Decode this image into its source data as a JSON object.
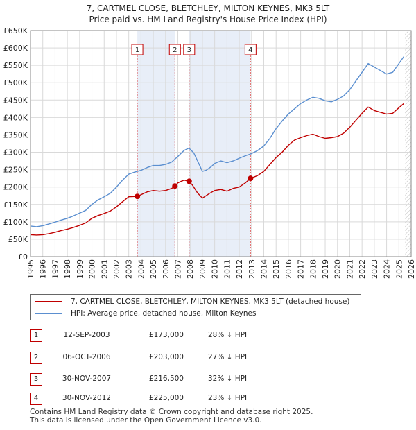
{
  "header": {
    "title": "7, CARTMEL CLOSE, BLETCHLEY, MILTON KEYNES, MK3 5LT",
    "subtitle": "Price paid vs. HM Land Registry's House Price Index (HPI)"
  },
  "chart_data": {
    "type": "line",
    "title": "7, CARTMEL CLOSE, BLETCHLEY, MILTON KEYNES, MK3 5LT",
    "subtitle": "Price paid vs. HM Land Registry's House Price Index (HPI)",
    "xlabel": "",
    "ylabel": "",
    "xlim": [
      1995,
      2026
    ],
    "ylim": [
      0,
      650000
    ],
    "y_ticks": [
      {
        "value": 0,
        "label": "£0"
      },
      {
        "value": 50000,
        "label": "£50K"
      },
      {
        "value": 100000,
        "label": "£100K"
      },
      {
        "value": 150000,
        "label": "£150K"
      },
      {
        "value": 200000,
        "label": "£200K"
      },
      {
        "value": 250000,
        "label": "£250K"
      },
      {
        "value": 300000,
        "label": "£300K"
      },
      {
        "value": 350000,
        "label": "£350K"
      },
      {
        "value": 400000,
        "label": "£400K"
      },
      {
        "value": 450000,
        "label": "£450K"
      },
      {
        "value": 500000,
        "label": "£500K"
      },
      {
        "value": 550000,
        "label": "£550K"
      },
      {
        "value": 600000,
        "label": "£600K"
      },
      {
        "value": 650000,
        "label": "£650K"
      }
    ],
    "x_ticks": [
      "1995",
      "1996",
      "1997",
      "1998",
      "1999",
      "2000",
      "2001",
      "2002",
      "2003",
      "2004",
      "2005",
      "2006",
      "2007",
      "2008",
      "2009",
      "2010",
      "2011",
      "2012",
      "2013",
      "2014",
      "2015",
      "2016",
      "2017",
      "2018",
      "2019",
      "2020",
      "2021",
      "2022",
      "2023",
      "2024",
      "2025",
      "2026"
    ],
    "grid": true,
    "shaded_periods": [
      [
        2003.7,
        2006.76
      ],
      [
        2007.92,
        2012.92
      ]
    ],
    "hatched_after": 2025.5,
    "series": [
      {
        "name": "7, CARTMEL CLOSE, BLETCHLEY, MILTON KEYNES, MK3 5LT (detached house)",
        "color": "#c00000",
        "x": [
          1995,
          1995.5,
          1996,
          1996.5,
          1997,
          1997.5,
          1998,
          1998.5,
          1999,
          1999.5,
          2000,
          2000.5,
          2001,
          2001.5,
          2002,
          2002.5,
          2003,
          2003.7,
          2004,
          2004.5,
          2005,
          2005.5,
          2006,
          2006.5,
          2006.76,
          2007,
          2007.5,
          2007.92,
          2008.2,
          2008.6,
          2009,
          2009.3,
          2009.6,
          2010,
          2010.5,
          2011,
          2011.5,
          2012,
          2012.5,
          2012.92,
          2013.5,
          2014,
          2014.5,
          2015,
          2015.5,
          2016,
          2016.5,
          2017,
          2017.5,
          2018,
          2018.5,
          2019,
          2019.5,
          2020,
          2020.5,
          2021,
          2021.5,
          2022,
          2022.5,
          2023,
          2023.5,
          2024,
          2024.5,
          2025,
          2025.4
        ],
        "y": [
          63000,
          62000,
          63000,
          66000,
          70000,
          75000,
          79000,
          84000,
          90000,
          97000,
          110000,
          118000,
          124000,
          131000,
          143000,
          158000,
          172000,
          173000,
          178000,
          186000,
          190000,
          188000,
          190000,
          196000,
          203000,
          212000,
          220000,
          216500,
          205000,
          183000,
          168000,
          175000,
          182000,
          190000,
          193000,
          188000,
          196000,
          200000,
          212000,
          225000,
          233000,
          245000,
          265000,
          285000,
          300000,
          320000,
          335000,
          342000,
          348000,
          352000,
          345000,
          340000,
          342000,
          345000,
          355000,
          372000,
          392000,
          412000,
          430000,
          420000,
          415000,
          410000,
          412000,
          428000,
          440000
        ]
      },
      {
        "name": "HPI: Average price, detached house, Milton Keynes",
        "color": "#5b8fd0",
        "x": [
          1995,
          1995.5,
          1996,
          1996.5,
          1997,
          1997.5,
          1998,
          1998.5,
          1999,
          1999.5,
          2000,
          2000.5,
          2001,
          2001.5,
          2002,
          2002.5,
          2003,
          2003.5,
          2004,
          2004.5,
          2005,
          2005.5,
          2006,
          2006.5,
          2007,
          2007.5,
          2007.9,
          2008.3,
          2008.7,
          2009,
          2009.3,
          2009.7,
          2010,
          2010.5,
          2011,
          2011.5,
          2012,
          2012.5,
          2013,
          2013.5,
          2014,
          2014.5,
          2015,
          2015.5,
          2016,
          2016.5,
          2017,
          2017.5,
          2018,
          2018.5,
          2019,
          2019.5,
          2020,
          2020.5,
          2021,
          2021.5,
          2022,
          2022.5,
          2023,
          2023.5,
          2024,
          2024.5,
          2025,
          2025.4
        ],
        "y": [
          88000,
          86000,
          89000,
          94000,
          99000,
          105000,
          110000,
          117000,
          125000,
          133000,
          150000,
          163000,
          172000,
          182000,
          200000,
          220000,
          237000,
          243000,
          248000,
          256000,
          262000,
          262000,
          265000,
          272000,
          288000,
          305000,
          312000,
          298000,
          268000,
          245000,
          248000,
          258000,
          268000,
          275000,
          270000,
          275000,
          283000,
          290000,
          296000,
          305000,
          318000,
          340000,
          368000,
          390000,
          410000,
          425000,
          440000,
          450000,
          458000,
          455000,
          448000,
          445000,
          452000,
          462000,
          480000,
          505000,
          530000,
          555000,
          545000,
          535000,
          525000,
          530000,
          555000,
          575000
        ]
      }
    ],
    "transactions": [
      {
        "label": "1",
        "x": 2003.7,
        "y": 173000
      },
      {
        "label": "2",
        "x": 2006.76,
        "y": 203000
      },
      {
        "label": "3",
        "x": 2007.92,
        "y": 216500
      },
      {
        "label": "4",
        "x": 2012.92,
        "y": 225000
      }
    ]
  },
  "legend": {
    "items": [
      {
        "label": "7, CARTMEL CLOSE, BLETCHLEY, MILTON KEYNES, MK3 5LT (detached house)",
        "color": "#c00000"
      },
      {
        "label": "HPI: Average price, detached house, Milton Keynes",
        "color": "#5b8fd0"
      }
    ]
  },
  "table": {
    "rows": [
      {
        "num": "1",
        "date": "12-SEP-2003",
        "price": "£173,000",
        "hpi": "28% ↓ HPI"
      },
      {
        "num": "2",
        "date": "06-OCT-2006",
        "price": "£203,000",
        "hpi": "27% ↓ HPI"
      },
      {
        "num": "3",
        "date": "30-NOV-2007",
        "price": "£216,500",
        "hpi": "32% ↓ HPI"
      },
      {
        "num": "4",
        "date": "30-NOV-2012",
        "price": "£225,000",
        "hpi": "23% ↓ HPI"
      }
    ]
  },
  "footer": {
    "line1": "Contains HM Land Registry data © Crown copyright and database right 2025.",
    "line2": "This data is licensed under the Open Government Licence v3.0."
  }
}
